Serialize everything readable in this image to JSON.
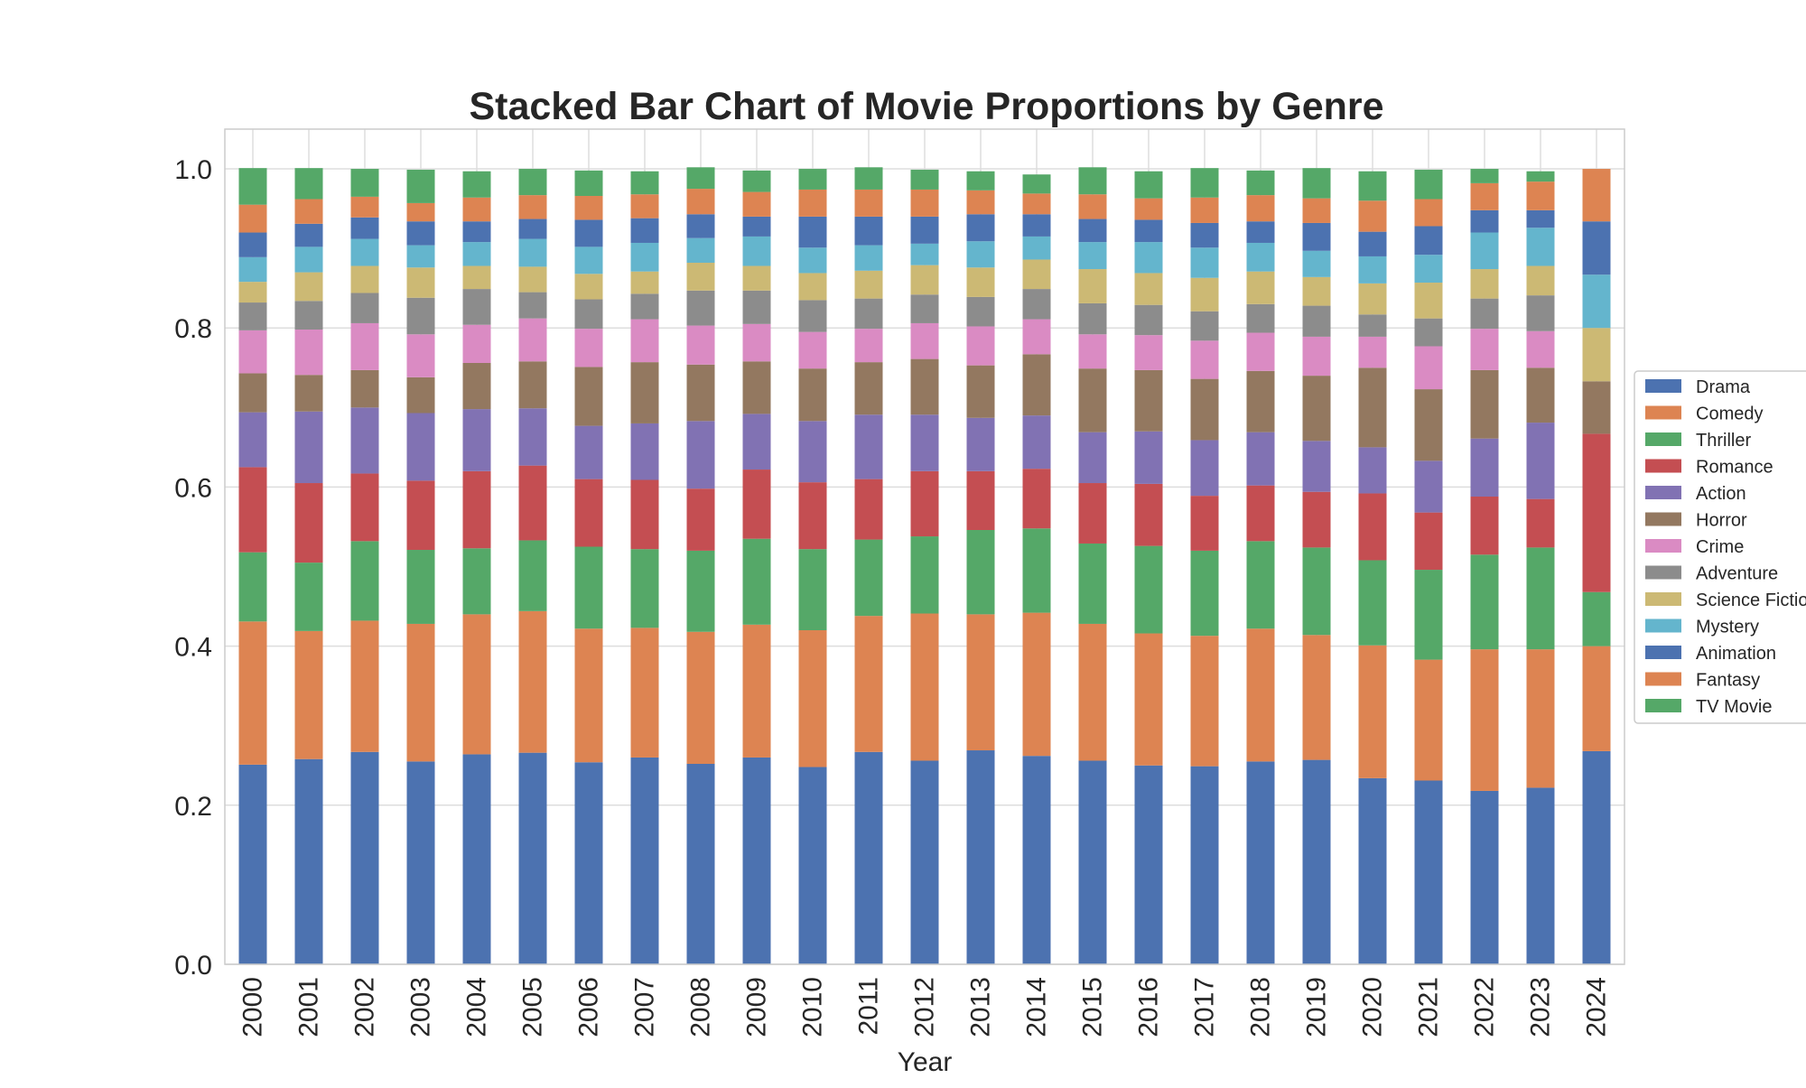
{
  "chart_data": {
    "type": "bar",
    "stacked": true,
    "title": "Stacked Bar Chart of Movie Proportions by Genre",
    "xlabel": "Year",
    "ylabel": "",
    "ylim": [
      0,
      1.05
    ],
    "yticks": [
      0.0,
      0.2,
      0.4,
      0.6,
      0.8,
      1.0
    ],
    "ytick_labels": [
      "0.0",
      "0.2",
      "0.4",
      "0.6",
      "0.8",
      "1.0"
    ],
    "grid": true,
    "legend_position": "right",
    "categories": [
      "2000",
      "2001",
      "2002",
      "2003",
      "2004",
      "2005",
      "2006",
      "2007",
      "2008",
      "2009",
      "2010",
      "2011",
      "2012",
      "2013",
      "2014",
      "2015",
      "2016",
      "2017",
      "2018",
      "2019",
      "2020",
      "2021",
      "2022",
      "2023",
      "2024"
    ],
    "series": [
      {
        "name": "Drama",
        "color": "#4c72b0",
        "values": [
          0.251,
          0.258,
          0.267,
          0.255,
          0.264,
          0.266,
          0.254,
          0.26,
          0.252,
          0.26,
          0.248,
          0.267,
          0.256,
          0.269,
          0.262,
          0.256,
          0.25,
          0.249,
          0.255,
          0.257,
          0.234,
          0.231,
          0.218,
          0.222,
          0.268
        ]
      },
      {
        "name": "Comedy",
        "color": "#dd8452",
        "values": [
          0.18,
          0.161,
          0.165,
          0.173,
          0.176,
          0.178,
          0.168,
          0.163,
          0.166,
          0.167,
          0.172,
          0.171,
          0.185,
          0.171,
          0.18,
          0.172,
          0.166,
          0.164,
          0.167,
          0.157,
          0.167,
          0.152,
          0.178,
          0.174,
          0.132
        ]
      },
      {
        "name": "Thriller",
        "color": "#55a868",
        "values": [
          0.087,
          0.086,
          0.1,
          0.093,
          0.083,
          0.089,
          0.103,
          0.099,
          0.102,
          0.108,
          0.102,
          0.096,
          0.097,
          0.106,
          0.106,
          0.101,
          0.11,
          0.107,
          0.11,
          0.11,
          0.107,
          0.113,
          0.119,
          0.128,
          0.068
        ]
      },
      {
        "name": "Romance",
        "color": "#c44e52",
        "values": [
          0.107,
          0.1,
          0.085,
          0.087,
          0.097,
          0.094,
          0.085,
          0.087,
          0.078,
          0.087,
          0.084,
          0.076,
          0.082,
          0.074,
          0.075,
          0.076,
          0.078,
          0.069,
          0.07,
          0.07,
          0.084,
          0.072,
          0.073,
          0.061,
          0.199
        ]
      },
      {
        "name": "Action",
        "color": "#8172b3",
        "values": [
          0.069,
          0.09,
          0.083,
          0.085,
          0.078,
          0.072,
          0.067,
          0.071,
          0.085,
          0.07,
          0.077,
          0.081,
          0.071,
          0.067,
          0.067,
          0.064,
          0.066,
          0.07,
          0.067,
          0.064,
          0.058,
          0.065,
          0.073,
          0.096,
          0.0
        ]
      },
      {
        "name": "Horror",
        "color": "#937860",
        "values": [
          0.049,
          0.046,
          0.047,
          0.045,
          0.058,
          0.059,
          0.074,
          0.077,
          0.071,
          0.066,
          0.066,
          0.066,
          0.07,
          0.066,
          0.077,
          0.08,
          0.077,
          0.077,
          0.077,
          0.082,
          0.1,
          0.09,
          0.086,
          0.069,
          0.066
        ]
      },
      {
        "name": "Crime",
        "color": "#da8bc3",
        "values": [
          0.054,
          0.057,
          0.059,
          0.054,
          0.048,
          0.054,
          0.048,
          0.054,
          0.049,
          0.047,
          0.046,
          0.042,
          0.045,
          0.049,
          0.044,
          0.043,
          0.044,
          0.048,
          0.048,
          0.049,
          0.039,
          0.054,
          0.052,
          0.046,
          0.0
        ]
      },
      {
        "name": "Adventure",
        "color": "#8c8c8c",
        "values": [
          0.035,
          0.036,
          0.038,
          0.046,
          0.045,
          0.033,
          0.037,
          0.032,
          0.044,
          0.042,
          0.04,
          0.038,
          0.036,
          0.037,
          0.038,
          0.039,
          0.038,
          0.037,
          0.036,
          0.039,
          0.028,
          0.035,
          0.038,
          0.045,
          0.0
        ]
      },
      {
        "name": "Science Fiction",
        "color": "#ccb974",
        "values": [
          0.026,
          0.036,
          0.034,
          0.038,
          0.029,
          0.032,
          0.032,
          0.028,
          0.035,
          0.031,
          0.034,
          0.035,
          0.037,
          0.037,
          0.037,
          0.043,
          0.04,
          0.042,
          0.041,
          0.036,
          0.039,
          0.045,
          0.037,
          0.037,
          0.067
        ]
      },
      {
        "name": "Mystery",
        "color": "#64b5cd",
        "values": [
          0.031,
          0.032,
          0.034,
          0.028,
          0.03,
          0.035,
          0.034,
          0.036,
          0.031,
          0.037,
          0.032,
          0.032,
          0.027,
          0.033,
          0.029,
          0.034,
          0.039,
          0.038,
          0.036,
          0.033,
          0.034,
          0.035,
          0.046,
          0.048,
          0.067
        ]
      },
      {
        "name": "Animation",
        "color": "#4c72b0",
        "values": [
          0.031,
          0.029,
          0.027,
          0.03,
          0.026,
          0.025,
          0.034,
          0.031,
          0.03,
          0.025,
          0.039,
          0.036,
          0.034,
          0.034,
          0.028,
          0.029,
          0.028,
          0.031,
          0.027,
          0.035,
          0.031,
          0.036,
          0.028,
          0.022,
          0.067
        ]
      },
      {
        "name": "Fantasy",
        "color": "#dd8452",
        "values": [
          0.035,
          0.031,
          0.026,
          0.023,
          0.03,
          0.03,
          0.03,
          0.03,
          0.032,
          0.031,
          0.034,
          0.034,
          0.034,
          0.03,
          0.026,
          0.031,
          0.027,
          0.032,
          0.033,
          0.031,
          0.039,
          0.034,
          0.034,
          0.036,
          0.066
        ]
      },
      {
        "name": "TV Movie",
        "color": "#55a868",
        "values": [
          0.046,
          0.039,
          0.035,
          0.042,
          0.033,
          0.033,
          0.032,
          0.029,
          0.027,
          0.027,
          0.026,
          0.028,
          0.025,
          0.024,
          0.024,
          0.034,
          0.034,
          0.037,
          0.031,
          0.038,
          0.037,
          0.037,
          0.018,
          0.013,
          0.0
        ]
      }
    ]
  }
}
